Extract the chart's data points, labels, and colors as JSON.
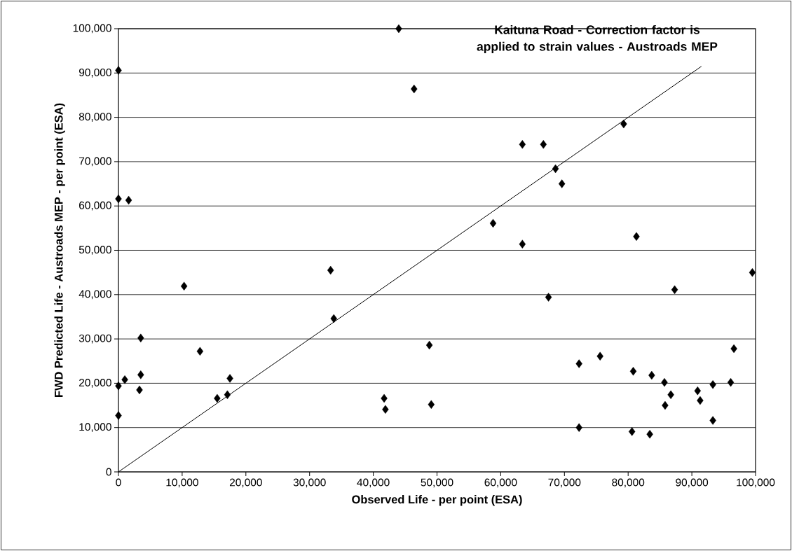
{
  "chart_data": {
    "type": "scatter",
    "title": "Kaituna Road - Correction factor is applied to strain values - Austroads MEP",
    "xlabel": "Observed Life - per point (ESA)",
    "ylabel": "FWD Predicted Life - Austroads MEP - per point (ESA)",
    "xlim": [
      0,
      100000
    ],
    "ylim": [
      0,
      100000
    ],
    "xticks": [
      {
        "value": 0,
        "label": "0"
      },
      {
        "value": 10000,
        "label": "10,000"
      },
      {
        "value": 20000,
        "label": "20,000"
      },
      {
        "value": 30000,
        "label": "30,000"
      },
      {
        "value": 40000,
        "label": "40,000"
      },
      {
        "value": 50000,
        "label": "50,000"
      },
      {
        "value": 60000,
        "label": "60,000"
      },
      {
        "value": 70000,
        "label": "70,000"
      },
      {
        "value": 80000,
        "label": "80,000"
      },
      {
        "value": 90000,
        "label": "90,000"
      },
      {
        "value": 100000,
        "label": "100,000"
      }
    ],
    "yticks": [
      {
        "value": 0,
        "label": "0"
      },
      {
        "value": 10000,
        "label": "10,000"
      },
      {
        "value": 20000,
        "label": "20,000"
      },
      {
        "value": 30000,
        "label": "30,000"
      },
      {
        "value": 40000,
        "label": "40,000"
      },
      {
        "value": 50000,
        "label": "50,000"
      },
      {
        "value": 60000,
        "label": "60,000"
      },
      {
        "value": 70000,
        "label": "70,000"
      },
      {
        "value": 80000,
        "label": "80,000"
      },
      {
        "value": 90000,
        "label": "90,000"
      },
      {
        "value": 100000,
        "label": "100,000"
      }
    ],
    "grid": "y",
    "marker": "diamond",
    "series": [
      {
        "color": "#000000",
        "x": [
          44000,
          0,
          46400,
          0,
          1600,
          79300,
          63400,
          66700,
          68600,
          69600,
          58800,
          63400,
          81300,
          33300,
          10300,
          33800,
          3500,
          12800,
          48800,
          3500,
          17500,
          1000,
          0,
          3300,
          15500,
          17100,
          41700,
          41900,
          49100,
          0,
          99500,
          67500,
          87300,
          75600,
          72300,
          96600,
          80800,
          83700,
          85700,
          93300,
          96100,
          90900,
          86700,
          91300,
          85800,
          93300,
          72300,
          80600,
          83400
        ],
        "values": [
          100000,
          90600,
          86400,
          61600,
          61300,
          78500,
          73900,
          73900,
          68400,
          65000,
          56100,
          51400,
          53100,
          45500,
          41900,
          34600,
          30200,
          27200,
          28600,
          21900,
          21100,
          20800,
          19400,
          18500,
          16600,
          17400,
          16600,
          14100,
          15200,
          12700,
          45000,
          39400,
          41100,
          26100,
          24400,
          27800,
          22700,
          21800,
          20200,
          19700,
          20200,
          18300,
          17400,
          16100,
          15000,
          11600,
          10000,
          9100,
          8500
        ]
      },
      {
        "type": "line",
        "color": "#000000",
        "marker": "none",
        "line_style": "solid",
        "x": [
          0,
          91500
        ],
        "values": [
          0,
          91500
        ]
      }
    ]
  }
}
